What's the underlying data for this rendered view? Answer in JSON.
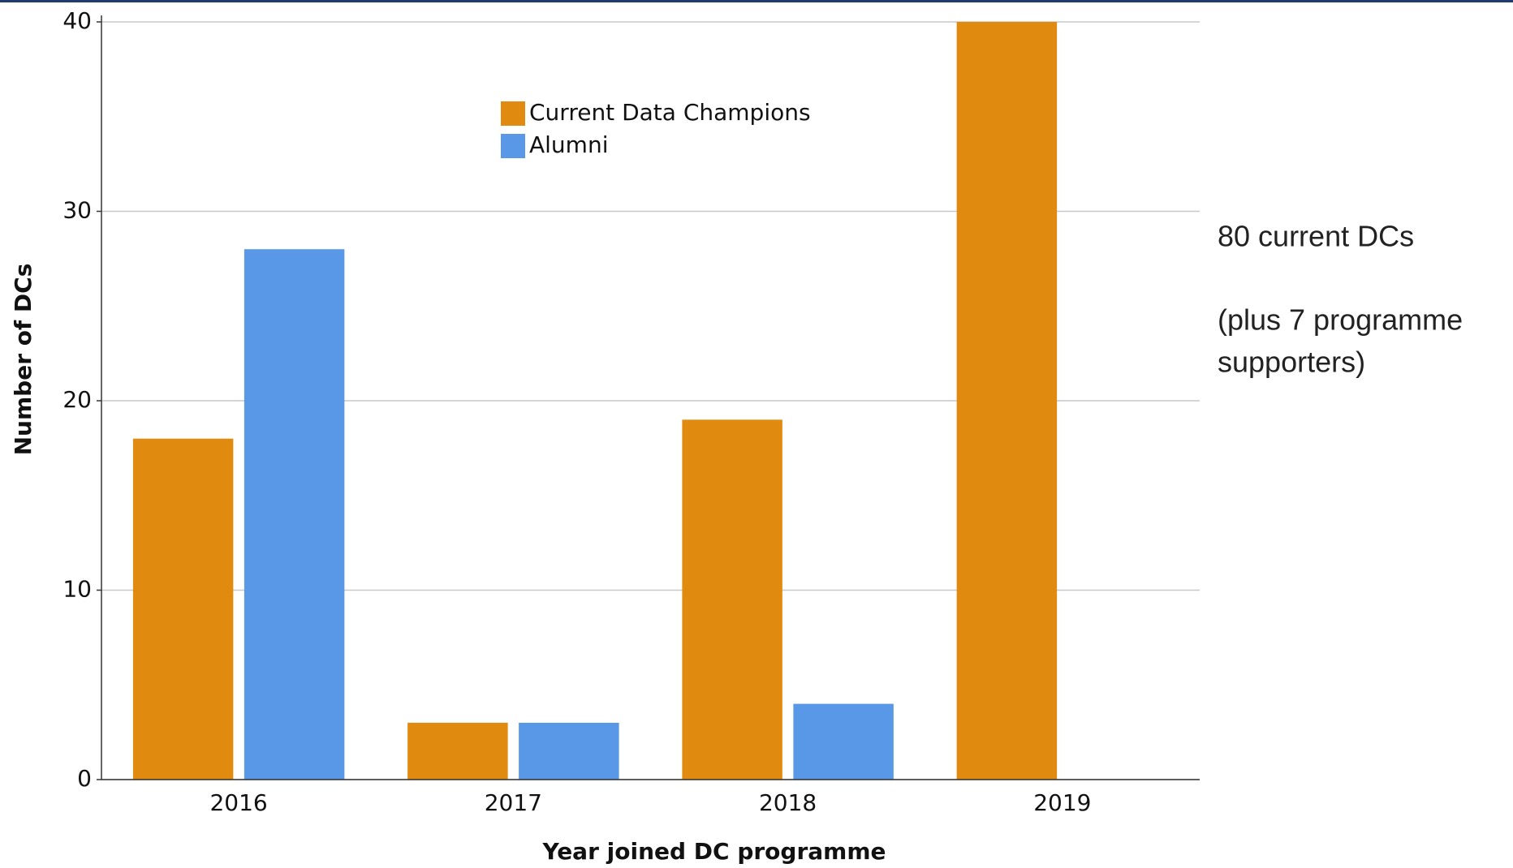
{
  "chart_data": {
    "type": "bar",
    "x_label": "Year joined DC programme",
    "y_label": "Number of DCs",
    "categories": [
      "2016",
      "2017",
      "2018",
      "2019"
    ],
    "series": [
      {
        "name": "Current Data Champions",
        "color": "#e08b10",
        "values": [
          18,
          3,
          19,
          40
        ]
      },
      {
        "name": "Alumni",
        "color": "#5898e6",
        "values": [
          28,
          3,
          4,
          null
        ]
      }
    ],
    "ylim": [
      0,
      40
    ],
    "yticks": [
      0,
      10,
      20,
      30,
      40
    ],
    "grid": true,
    "annotations": [
      "80 current DCs",
      "(plus 7 programme",
      "supporters)"
    ]
  }
}
